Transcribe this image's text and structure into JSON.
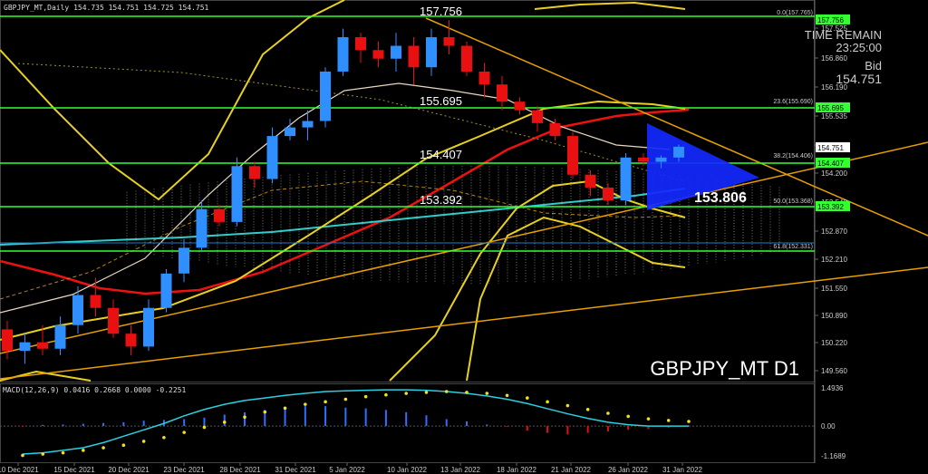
{
  "header": {
    "ohlc_text": "GBPJPY_MT,Daily  154.735 154.751 154.725 154.751"
  },
  "info": {
    "time_remain_label": "TIME REMAIN",
    "time_remain": "23:25:00",
    "bid_label": "Bid",
    "bid": "154.751"
  },
  "symbol_watermark": "GBPJPY_MT D1",
  "levels": {
    "high": "157.756",
    "l1": "155.695",
    "l2": "154.407",
    "l3": "153.392",
    "target": "153.806"
  },
  "fib": [
    {
      "label": "0.0(157.765)",
      "value": 157.765
    },
    {
      "label": "23.6(155.690)",
      "value": 155.69
    },
    {
      "label": "38.2(154.406)",
      "value": 154.406
    },
    {
      "label": "50.0(153.368)",
      "value": 153.368
    },
    {
      "label": "61.8(152.331)",
      "value": 152.331
    }
  ],
  "price_axis": [
    "157.525",
    "156.860",
    "156.190",
    "155.535",
    "154.870",
    "154.200",
    "153.540",
    "152.870",
    "152.210",
    "151.550",
    "150.890",
    "150.220",
    "149.560"
  ],
  "right_tags": {
    "p1": "157.756",
    "p2": "155.695",
    "p3": "154.751",
    "p4": "154.407",
    "p5": "153.392"
  },
  "date_axis": [
    "10 Dec 2021",
    "15 Dec 2021",
    "20 Dec 2021",
    "23 Dec 2021",
    "28 Dec 2021",
    "31 Dec 2021",
    "5 Jan 2022",
    "10 Jan 2022",
    "13 Jan 2022",
    "18 Jan 2022",
    "21 Jan 2022",
    "26 Jan 2022",
    "31 Jan 2022"
  ],
  "macd": {
    "label": "MACD(12,26,9) 0.0416 0.2668 0.0000 -0.2251",
    "axis": [
      "1.4936",
      "0.00",
      "-1.1689"
    ],
    "hist": [
      -0.05,
      0.08,
      0.1,
      0.15,
      0.2,
      0.25,
      0.35,
      0.4,
      0.45,
      0.55,
      0.75,
      0.9,
      1.05,
      1.2,
      1.3,
      1.3,
      1.2,
      1.15,
      1.05,
      0.9,
      0.7,
      0.45,
      0.3,
      0.1,
      -0.05,
      -0.3,
      -0.45,
      -0.55,
      -0.45,
      -0.35,
      -0.25,
      -0.2,
      -0.1,
      -0.05
    ],
    "signal": [
      -1.1,
      -1.05,
      -0.95,
      -0.85,
      -0.65,
      -0.4,
      -0.15,
      0.1,
      0.4,
      0.65,
      0.85,
      1.0,
      1.1,
      1.2,
      1.28,
      1.35,
      1.38,
      1.4,
      1.42,
      1.42,
      1.4,
      1.35,
      1.28,
      1.18,
      1.05,
      0.88,
      0.68,
      0.48,
      0.3,
      0.15,
      0.05,
      0.0,
      0.0,
      0.0
    ],
    "dots": [
      -1.15,
      -1.1,
      -1.05,
      -0.95,
      -0.85,
      -0.75,
      -0.6,
      -0.45,
      -0.25,
      -0.05,
      0.15,
      0.35,
      0.55,
      0.7,
      0.85,
      0.95,
      1.05,
      1.15,
      1.22,
      1.28,
      1.32,
      1.35,
      1.32,
      1.28,
      1.2,
      1.1,
      0.95,
      0.8,
      0.65,
      0.5,
      0.38,
      0.28,
      0.22,
      0.18
    ]
  },
  "candles": [
    [
      150.5,
      150.7,
      149.8,
      150.0
    ],
    [
      150.0,
      150.4,
      149.7,
      150.2
    ],
    [
      150.2,
      150.6,
      149.9,
      150.05
    ],
    [
      150.05,
      150.8,
      149.9,
      150.6
    ],
    [
      150.6,
      151.5,
      150.4,
      151.3
    ],
    [
      151.3,
      151.7,
      150.8,
      151.0
    ],
    [
      151.0,
      151.2,
      150.3,
      150.4
    ],
    [
      150.4,
      150.6,
      149.9,
      150.1
    ],
    [
      150.1,
      151.2,
      150.0,
      151.0
    ],
    [
      151.0,
      151.9,
      150.9,
      151.8
    ],
    [
      151.8,
      152.6,
      151.6,
      152.4
    ],
    [
      152.4,
      153.5,
      152.3,
      153.3
    ],
    [
      153.3,
      153.4,
      152.9,
      153.0
    ],
    [
      153.0,
      154.5,
      152.9,
      154.3
    ],
    [
      154.3,
      154.4,
      153.8,
      154.0
    ],
    [
      154.0,
      155.2,
      153.9,
      155.0
    ],
    [
      155.0,
      155.4,
      154.9,
      155.2
    ],
    [
      155.2,
      155.6,
      154.9,
      155.35
    ],
    [
      155.35,
      156.6,
      155.2,
      156.5
    ],
    [
      156.5,
      157.5,
      156.4,
      157.3
    ],
    [
      157.3,
      157.4,
      156.7,
      157.0
    ],
    [
      157.0,
      157.2,
      156.6,
      156.8
    ],
    [
      156.8,
      157.4,
      156.5,
      157.1
    ],
    [
      157.1,
      157.3,
      156.2,
      156.6
    ],
    [
      156.6,
      157.5,
      156.4,
      157.3
    ],
    [
      157.3,
      157.7,
      156.9,
      157.1
    ],
    [
      157.1,
      157.2,
      156.4,
      156.5
    ],
    [
      156.5,
      156.7,
      155.9,
      156.2
    ],
    [
      156.2,
      156.4,
      155.6,
      155.8
    ],
    [
      155.8,
      155.9,
      155.5,
      155.6
    ],
    [
      155.6,
      155.7,
      155.1,
      155.3
    ],
    [
      155.3,
      155.4,
      154.9,
      155.0
    ],
    [
      155.0,
      155.1,
      154.0,
      154.1
    ],
    [
      154.1,
      154.2,
      153.6,
      153.8
    ],
    [
      153.8,
      153.9,
      153.4,
      153.5
    ],
    [
      153.5,
      154.6,
      153.4,
      154.5
    ],
    [
      154.5,
      154.6,
      154.3,
      154.4
    ],
    [
      154.4,
      154.55,
      154.25,
      154.5
    ],
    [
      154.5,
      154.8,
      154.4,
      154.75
    ]
  ]
}
